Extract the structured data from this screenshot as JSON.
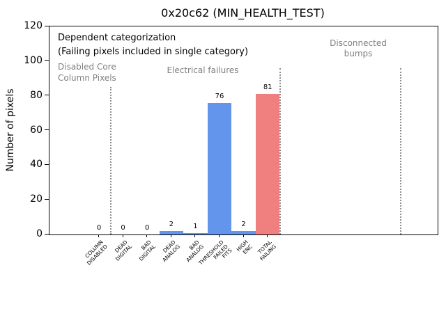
{
  "chart_data": {
    "type": "bar",
    "title": "0x20c62 (MIN_HEALTH_TEST)",
    "ylabel": "Number of pixels",
    "xlabel": "",
    "ylim": [
      0,
      120
    ],
    "yticks": [
      0,
      20,
      40,
      60,
      80,
      100,
      120
    ],
    "grid": false,
    "legend_position": "none",
    "categories": [
      "COLUMN DISABLED",
      "DEAD DIGITAL",
      "BAD DIGITAL",
      "DEAD ANALOG",
      "BAD ANALOG",
      "THRESHOLD FAILED FITS",
      "HIGH ENC",
      "TOTAL FAILING"
    ],
    "category_label_lines": [
      [
        "COLUMN",
        "DISABLED"
      ],
      [
        "DEAD",
        "DIGITAL"
      ],
      [
        "BAD",
        "DIGITAL"
      ],
      [
        "DEAD",
        "ANALOG"
      ],
      [
        "BAD",
        "ANALOG"
      ],
      [
        "THRESHOLD",
        "FAILED",
        "FITS"
      ],
      [
        "HIGH",
        "ENC"
      ],
      [
        "TOTAL",
        "FAILING"
      ]
    ],
    "values": [
      0,
      0,
      0,
      2,
      1,
      76,
      2,
      81
    ],
    "bar_colors": [
      "#6495ed",
      "#6495ed",
      "#6495ed",
      "#6495ed",
      "#6495ed",
      "#6495ed",
      "#6495ed",
      "#f08080"
    ],
    "annotations": {
      "note": [
        "Dependent categorization",
        "(Failing pixels included in single category)"
      ],
      "regions": [
        {
          "label_lines": [
            "Disabled Core",
            "Column Pixels"
          ]
        },
        {
          "label_lines": [
            "Electrical failures"
          ]
        },
        {
          "label_lines": [
            "Disconnected",
            "bumps"
          ]
        }
      ],
      "separator_positions": [
        0.5,
        7.5,
        12.5
      ]
    },
    "colors": {
      "bar_blue": "#6495ed",
      "bar_red": "#f08080",
      "annotation_gray": "#808080",
      "separator_gray": "#8f8f8f",
      "axis_black": "#000000",
      "background": "#ffffff"
    }
  }
}
